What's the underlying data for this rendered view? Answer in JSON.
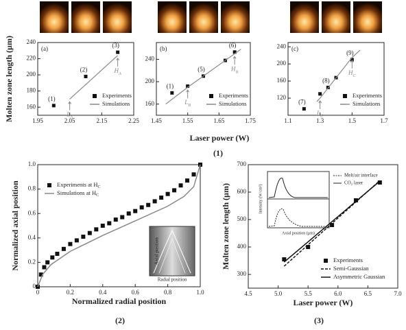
{
  "figure": {
    "group1_ylabel": "Molten zone length (µm)",
    "group1_xlabel": "Laser power (W)",
    "panel_labels": [
      "(1)",
      "(2)",
      "(3)"
    ]
  },
  "chart_data": [
    {
      "type": "line",
      "panel_label": "(a)",
      "xlim": [
        1.95,
        2.25
      ],
      "xticks": [
        1.95,
        2.05,
        2.15,
        2.25
      ],
      "ylim": [
        150,
        240
      ],
      "yticks": [
        160,
        180,
        200,
        220,
        240
      ],
      "legend": "lower right",
      "series": [
        {
          "name": "Experiments",
          "style": "markers",
          "color": "#111111",
          "x": [
            2.0,
            2.1,
            2.2
          ],
          "values": [
            162,
            198,
            228
          ],
          "point_labels": [
            "(1)",
            "(2)",
            "(3)"
          ]
        },
        {
          "name": "Simulations",
          "style": "solid",
          "color": "#888888",
          "x": [
            2.05,
            2.2
          ],
          "values": [
            170,
            224
          ],
          "arrow_text": [
            "L",
            "H"
          ],
          "arrow_sub": [
            "A",
            "A"
          ]
        }
      ]
    },
    {
      "type": "line",
      "panel_label": "(b)",
      "xlim": [
        1.45,
        1.75
      ],
      "xticks": [
        1.45,
        1.55,
        1.65,
        1.75
      ],
      "ylim": [
        140,
        270
      ],
      "yticks": [
        160,
        200,
        240
      ],
      "legend": "lower right",
      "series": [
        {
          "name": "Experiments",
          "style": "markers",
          "color": "#111111",
          "x": [
            1.5,
            1.55,
            1.6,
            1.67,
            1.7
          ],
          "values": [
            180,
            192,
            210,
            238,
            253
          ],
          "point_labels": [
            "(1)",
            null,
            "(5)",
            null,
            "(6)"
          ]
        },
        {
          "name": "Simulations",
          "style": "solid",
          "color": "#888888",
          "x": [
            1.48,
            1.55,
            1.7,
            1.72
          ],
          "values": [
            160,
            190,
            250,
            258
          ],
          "arrow_text": [
            null,
            "L",
            "H",
            null
          ],
          "arrow_sub": [
            null,
            "B",
            "B",
            null
          ]
        }
      ]
    },
    {
      "type": "line",
      "panel_label": "(c)",
      "xlim": [
        1.1,
        1.7
      ],
      "xticks": [
        1.1,
        1.3,
        1.5,
        1.7
      ],
      "ylim": [
        80,
        250
      ],
      "yticks": [
        120,
        160,
        200,
        240
      ],
      "legend": "lower right",
      "series": [
        {
          "name": "Experiments",
          "style": "markers",
          "color": "#111111",
          "x": [
            1.2,
            1.3,
            1.35,
            1.4,
            1.5
          ],
          "values": [
            95,
            130,
            145,
            168,
            210
          ],
          "point_labels": [
            "(7)",
            null,
            "(8)",
            null,
            "(9)"
          ]
        },
        {
          "name": "Simulations",
          "style": "solid",
          "color": "#888888",
          "x": [
            1.28,
            1.3,
            1.5,
            1.55
          ],
          "values": [
            112,
            120,
            215,
            232
          ],
          "arrow_text": [
            null,
            "L",
            "H",
            null
          ],
          "arrow_sub": [
            null,
            "C",
            "C",
            null
          ]
        }
      ]
    },
    {
      "type": "line",
      "xlabel": "Normalized radial position",
      "ylabel": "Normalized axial position",
      "xlim": [
        0,
        1
      ],
      "xticks": [
        0,
        0.2,
        0.4,
        0.6,
        0.8,
        {
          "value": 1,
          "label": "1.0"
        }
      ],
      "ylim": [
        0,
        1
      ],
      "yticks": [
        0,
        0.2,
        0.4,
        0.6,
        0.8,
        {
          "value": 1,
          "label": "1.0"
        }
      ],
      "legend": "upper left",
      "inset": {
        "ylabel": "Axial position",
        "xlabel": "Radial position"
      },
      "series": [
        {
          "name": "Experiments at H",
          "name_sub": "C",
          "style": "markers",
          "color": "#111111",
          "x": [
            0.0,
            0.02,
            0.04,
            0.06,
            0.09,
            0.12,
            0.16,
            0.2,
            0.24,
            0.28,
            0.32,
            0.36,
            0.4,
            0.44,
            0.48,
            0.52,
            0.56,
            0.6,
            0.64,
            0.68,
            0.72,
            0.76,
            0.8,
            0.84,
            0.88,
            0.92,
            0.96,
            1.0
          ],
          "values": [
            0.0,
            0.1,
            0.16,
            0.2,
            0.24,
            0.27,
            0.31,
            0.35,
            0.38,
            0.41,
            0.44,
            0.47,
            0.5,
            0.52,
            0.55,
            0.57,
            0.6,
            0.62,
            0.65,
            0.67,
            0.7,
            0.73,
            0.76,
            0.79,
            0.83,
            0.87,
            0.92,
            1.0
          ]
        },
        {
          "name": "Simulations at H",
          "name_sub": "C",
          "style": "solid",
          "color": "#888888",
          "x": [
            0.0,
            0.03,
            0.08,
            0.2,
            0.4,
            0.6,
            0.8,
            0.9,
            0.96,
            1.0
          ],
          "values": [
            0.0,
            0.1,
            0.18,
            0.29,
            0.42,
            0.54,
            0.66,
            0.74,
            0.82,
            1.0
          ]
        }
      ]
    },
    {
      "type": "line",
      "xlabel": "Laser power (W)",
      "ylabel": "Molten zone length (µm)",
      "xlim": [
        4.5,
        7
      ],
      "xticks": [
        4.5,
        {
          "value": 5,
          "label": "5.0"
        },
        5.5,
        {
          "value": 6,
          "label": "6.0"
        },
        6.5,
        {
          "value": 7,
          "label": "7.0"
        }
      ],
      "ylim": [
        250,
        700
      ],
      "yticks": [
        300,
        400,
        500,
        600,
        700
      ],
      "legend": "lower right",
      "inset": {
        "ylabel": "Intensity (W/cm²)",
        "xlabel": "Axial position (µm)",
        "legend": [
          "Melt/air interface",
          "CO₂ laser"
        ]
      },
      "series": [
        {
          "name": "Experiments",
          "style": "markers",
          "color": "#111111",
          "x": [
            5.1,
            5.5,
            5.9,
            6.3,
            6.7
          ],
          "values": [
            355,
            400,
            480,
            570,
            635
          ]
        },
        {
          "name": "Semi-Gaussian",
          "style": "dashed",
          "color": "#111111",
          "x": [
            5.1,
            6.7
          ],
          "values": [
            330,
            642
          ]
        },
        {
          "name": "Asymmetric Gaussian",
          "style": "solid",
          "color": "#111111",
          "x": [
            5.1,
            6.7
          ],
          "values": [
            345,
            640
          ]
        }
      ]
    }
  ]
}
